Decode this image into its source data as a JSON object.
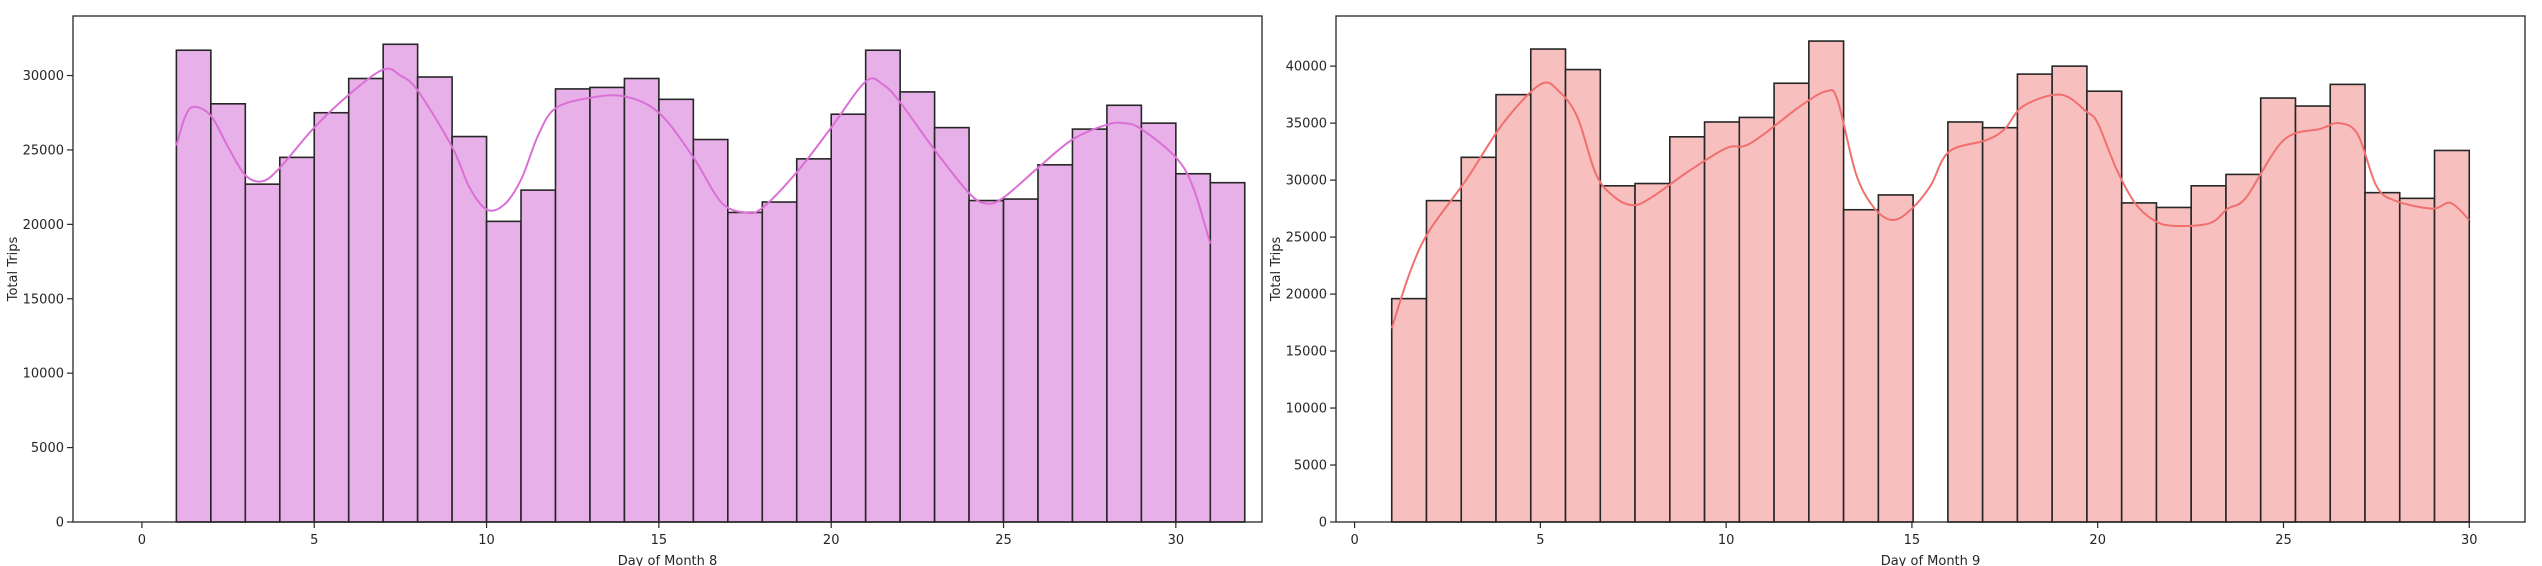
{
  "chart_data": [
    {
      "type": "bar",
      "title": "",
      "xlabel": "Day of Month 8",
      "ylabel": "Total Trips",
      "xlim": [
        -2,
        32.5
      ],
      "ylim": [
        0,
        34000
      ],
      "x_ticks": [
        0,
        5,
        10,
        15,
        20,
        25,
        30
      ],
      "x_tick_labels": [
        "0",
        "5",
        "10",
        "15",
        "20",
        "25",
        "30"
      ],
      "y_ticks": [
        0,
        5000,
        10000,
        15000,
        20000,
        25000,
        30000
      ],
      "y_tick_labels": [
        "0",
        "5000",
        "10000",
        "15000",
        "20000",
        "25000",
        "30000"
      ],
      "grid": false,
      "bar_color": "#e8b0e8",
      "kde_color": "#da70d6",
      "bins": [
        {
          "start": 1,
          "end": 2,
          "value": 31700
        },
        {
          "start": 2,
          "end": 3,
          "value": 28100
        },
        {
          "start": 3,
          "end": 4,
          "value": 22700
        },
        {
          "start": 4,
          "end": 5,
          "value": 24500
        },
        {
          "start": 5,
          "end": 6,
          "value": 27500
        },
        {
          "start": 6,
          "end": 7,
          "value": 29800
        },
        {
          "start": 7,
          "end": 8,
          "value": 32100
        },
        {
          "start": 8,
          "end": 9,
          "value": 29900
        },
        {
          "start": 9,
          "end": 10,
          "value": 25900
        },
        {
          "start": 10,
          "end": 11,
          "value": 20200
        },
        {
          "start": 11,
          "end": 12,
          "value": 22300
        },
        {
          "start": 12,
          "end": 13,
          "value": 29100
        },
        {
          "start": 13,
          "end": 14,
          "value": 29200
        },
        {
          "start": 14,
          "end": 15,
          "value": 29800
        },
        {
          "start": 15,
          "end": 16,
          "value": 28400
        },
        {
          "start": 16,
          "end": 17,
          "value": 25700
        },
        {
          "start": 17,
          "end": 18,
          "value": 20800
        },
        {
          "start": 18,
          "end": 19,
          "value": 21500
        },
        {
          "start": 19,
          "end": 20,
          "value": 24400
        },
        {
          "start": 20,
          "end": 21,
          "value": 27400
        },
        {
          "start": 21,
          "end": 22,
          "value": 31700
        },
        {
          "start": 22,
          "end": 23,
          "value": 28900
        },
        {
          "start": 23,
          "end": 24,
          "value": 26500
        },
        {
          "start": 24,
          "end": 25,
          "value": 21600
        },
        {
          "start": 25,
          "end": 26,
          "value": 21700
        },
        {
          "start": 26,
          "end": 27,
          "value": 24000
        },
        {
          "start": 27,
          "end": 28,
          "value": 26400
        },
        {
          "start": 28,
          "end": 29,
          "value": 28000
        },
        {
          "start": 29,
          "end": 30,
          "value": 26800
        },
        {
          "start": 30,
          "end": 31,
          "value": 23400
        },
        {
          "start": 31,
          "end": 32,
          "value": 22800
        }
      ],
      "kde": [
        [
          1.0,
          25300
        ],
        [
          1.25,
          27200
        ],
        [
          1.5,
          27900
        ],
        [
          2.0,
          27300
        ],
        [
          2.5,
          25200
        ],
        [
          3.0,
          23300
        ],
        [
          3.5,
          22900
        ],
        [
          4.0,
          23800
        ],
        [
          5.0,
          26500
        ],
        [
          6.0,
          28700
        ],
        [
          7.0,
          30400
        ],
        [
          7.5,
          30000
        ],
        [
          8.0,
          29000
        ],
        [
          9.0,
          25200
        ],
        [
          9.5,
          22500
        ],
        [
          10.0,
          21000
        ],
        [
          10.5,
          21300
        ],
        [
          11.0,
          23000
        ],
        [
          11.5,
          26000
        ],
        [
          12.0,
          27800
        ],
        [
          13.0,
          28500
        ],
        [
          14.0,
          28600
        ],
        [
          15.0,
          27500
        ],
        [
          16.0,
          24500
        ],
        [
          16.8,
          21500
        ],
        [
          17.5,
          20800
        ],
        [
          18.0,
          21100
        ],
        [
          19.0,
          23500
        ],
        [
          20.0,
          26500
        ],
        [
          21.0,
          29600
        ],
        [
          21.5,
          29400
        ],
        [
          22.0,
          28200
        ],
        [
          23.0,
          25000
        ],
        [
          24.0,
          22100
        ],
        [
          24.5,
          21400
        ],
        [
          25.0,
          21800
        ],
        [
          26.0,
          23800
        ],
        [
          27.0,
          25700
        ],
        [
          28.0,
          26700
        ],
        [
          28.5,
          26800
        ],
        [
          29.0,
          26400
        ],
        [
          30.0,
          24500
        ],
        [
          30.5,
          22500
        ],
        [
          31.0,
          18700
        ]
      ]
    },
    {
      "type": "bar",
      "title": "",
      "xlabel": "Day of Month 9",
      "ylabel": "Total Trips",
      "xlim": [
        -0.5,
        31.5
      ],
      "ylim": [
        0,
        44400
      ],
      "x_ticks": [
        0,
        5,
        10,
        15,
        20,
        25,
        30
      ],
      "x_tick_labels": [
        "0",
        "5",
        "10",
        "15",
        "20",
        "25",
        "30"
      ],
      "y_ticks": [
        0,
        5000,
        10000,
        15000,
        20000,
        25000,
        30000,
        35000,
        40000
      ],
      "y_tick_labels": [
        "0",
        "5000",
        "10000",
        "15000",
        "20000",
        "25000",
        "30000",
        "35000",
        "40000"
      ],
      "grid": false,
      "bar_color": "#f8bfbf",
      "kde_color": "#f07070",
      "bins": [
        {
          "start": 1.0,
          "end": 1.935,
          "value": 19600
        },
        {
          "start": 1.935,
          "end": 2.871,
          "value": 28200
        },
        {
          "start": 2.871,
          "end": 3.806,
          "value": 32000
        },
        {
          "start": 3.806,
          "end": 4.742,
          "value": 37500
        },
        {
          "start": 4.742,
          "end": 5.677,
          "value": 41500
        },
        {
          "start": 5.677,
          "end": 6.613,
          "value": 39700
        },
        {
          "start": 6.613,
          "end": 7.548,
          "value": 29500
        },
        {
          "start": 7.548,
          "end": 8.484,
          "value": 29700
        },
        {
          "start": 8.484,
          "end": 9.419,
          "value": 33800
        },
        {
          "start": 9.419,
          "end": 10.355,
          "value": 35100
        },
        {
          "start": 10.355,
          "end": 11.29,
          "value": 35500
        },
        {
          "start": 11.29,
          "end": 12.226,
          "value": 38500
        },
        {
          "start": 12.226,
          "end": 13.161,
          "value": 42200
        },
        {
          "start": 13.161,
          "end": 14.097,
          "value": 27400
        },
        {
          "start": 14.097,
          "end": 15.032,
          "value": 28700
        },
        {
          "start": 15.032,
          "end": 15.968,
          "value": 0
        },
        {
          "start": 15.968,
          "end": 16.903,
          "value": 35100
        },
        {
          "start": 16.903,
          "end": 17.839,
          "value": 34600
        },
        {
          "start": 17.839,
          "end": 18.774,
          "value": 39300
        },
        {
          "start": 18.774,
          "end": 19.71,
          "value": 40000
        },
        {
          "start": 19.71,
          "end": 20.645,
          "value": 37800
        },
        {
          "start": 20.645,
          "end": 21.581,
          "value": 28000
        },
        {
          "start": 21.581,
          "end": 22.516,
          "value": 27600
        },
        {
          "start": 22.516,
          "end": 23.452,
          "value": 29500
        },
        {
          "start": 23.452,
          "end": 24.387,
          "value": 30500
        },
        {
          "start": 24.387,
          "end": 25.323,
          "value": 37200
        },
        {
          "start": 25.323,
          "end": 26.258,
          "value": 36500
        },
        {
          "start": 26.258,
          "end": 27.194,
          "value": 38400
        },
        {
          "start": 27.194,
          "end": 28.129,
          "value": 28900
        },
        {
          "start": 28.129,
          "end": 29.065,
          "value": 28400
        },
        {
          "start": 29.065,
          "end": 30.0,
          "value": 32600
        }
      ],
      "kde": [
        [
          1.0,
          17000
        ],
        [
          1.5,
          22000
        ],
        [
          2.0,
          25500
        ],
        [
          3.0,
          30000
        ],
        [
          4.0,
          35000
        ],
        [
          5.0,
          38400
        ],
        [
          5.5,
          37800
        ],
        [
          6.0,
          35500
        ],
        [
          6.5,
          30500
        ],
        [
          7.0,
          28500
        ],
        [
          7.5,
          27800
        ],
        [
          8.0,
          28500
        ],
        [
          9.0,
          30800
        ],
        [
          10.0,
          32800
        ],
        [
          10.5,
          33000
        ],
        [
          11.0,
          34000
        ],
        [
          12.0,
          36500
        ],
        [
          12.7,
          37800
        ],
        [
          13.0,
          37000
        ],
        [
          13.5,
          30500
        ],
        [
          14.0,
          27500
        ],
        [
          14.5,
          26500
        ],
        [
          15.0,
          27500
        ],
        [
          15.5,
          29500
        ],
        [
          16.0,
          32500
        ],
        [
          17.0,
          33500
        ],
        [
          17.5,
          34500
        ],
        [
          18.0,
          36500
        ],
        [
          19.0,
          37500
        ],
        [
          19.7,
          36000
        ],
        [
          20.0,
          35000
        ],
        [
          20.5,
          31000
        ],
        [
          21.0,
          28000
        ],
        [
          21.5,
          26500
        ],
        [
          22.0,
          26000
        ],
        [
          23.0,
          26200
        ],
        [
          23.5,
          27500
        ],
        [
          24.0,
          28500
        ],
        [
          25.0,
          33500
        ],
        [
          26.0,
          34500
        ],
        [
          26.5,
          35000
        ],
        [
          27.0,
          34000
        ],
        [
          27.5,
          29500
        ],
        [
          28.0,
          28200
        ],
        [
          29.0,
          27500
        ],
        [
          29.5,
          28000
        ],
        [
          30.0,
          26500
        ]
      ]
    }
  ]
}
